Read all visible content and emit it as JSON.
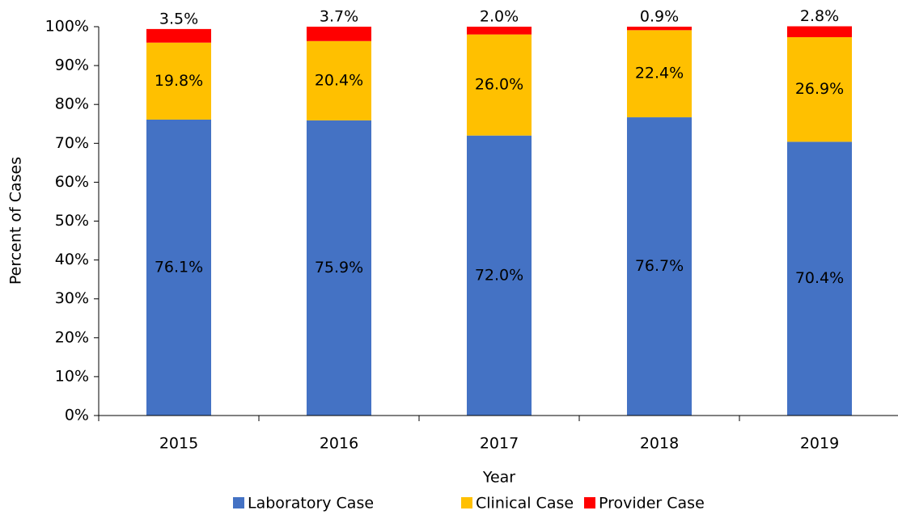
{
  "chart_data": {
    "type": "stacked_bar",
    "x_label": "Year",
    "y_label": "Percent of Cases",
    "categories": [
      "2015",
      "2016",
      "2017",
      "2018",
      "2019"
    ],
    "series": [
      {
        "name": "Laboratory Case",
        "color": "#4472c4",
        "values": [
          76.1,
          75.9,
          72.0,
          76.7,
          70.4
        ],
        "value_labels": [
          "76.1%",
          "75.9%",
          "72.0%",
          "76.7%",
          "70.4%"
        ]
      },
      {
        "name": "Clinical Case",
        "color": "#ffc000",
        "values": [
          19.8,
          20.4,
          26.0,
          22.4,
          26.9
        ],
        "value_labels": [
          "19.8%",
          "20.4%",
          "26.0%",
          "22.4%",
          "26.9%"
        ]
      },
      {
        "name": "Provider Case",
        "color": "#ff0000",
        "values": [
          3.5,
          3.7,
          2.0,
          0.9,
          2.8
        ],
        "value_labels": [
          "3.5%",
          "3.7%",
          "2.0%",
          "0.9%",
          "2.8%"
        ]
      }
    ],
    "ylim": [
      0,
      100
    ],
    "yticks": [
      {
        "value": 0,
        "label": "0%"
      },
      {
        "value": 10,
        "label": "10%"
      },
      {
        "value": 20,
        "label": "20%"
      },
      {
        "value": 30,
        "label": "30%"
      },
      {
        "value": 40,
        "label": "40%"
      },
      {
        "value": 50,
        "label": "50%"
      },
      {
        "value": 60,
        "label": "60%"
      },
      {
        "value": 70,
        "label": "70%"
      },
      {
        "value": 80,
        "label": "80%"
      },
      {
        "value": 90,
        "label": "90%"
      },
      {
        "value": 100,
        "label": "100%"
      }
    ],
    "grid": false,
    "legend": "bottom"
  }
}
